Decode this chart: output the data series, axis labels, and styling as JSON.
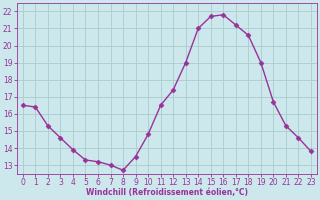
{
  "x": [
    0,
    1,
    2,
    3,
    4,
    5,
    6,
    7,
    8,
    9,
    10,
    11,
    12,
    13,
    14,
    15,
    16,
    17,
    18,
    19,
    20,
    21,
    22,
    23
  ],
  "y": [
    16.5,
    16.4,
    15.3,
    14.6,
    13.9,
    13.3,
    13.2,
    13.0,
    12.7,
    13.5,
    14.8,
    16.5,
    17.4,
    19.0,
    21.0,
    21.7,
    21.8,
    21.2,
    20.6,
    19.0,
    16.7,
    15.3,
    14.6,
    13.8
  ],
  "line_color": "#993399",
  "marker": "D",
  "marker_size": 2.5,
  "line_width": 1.0,
  "bg_color": "#cce8ec",
  "grid_color": "#aacccc",
  "xlabel": "Windchill (Refroidissement éolien,°C)",
  "xlabel_color": "#993399",
  "tick_color": "#993399",
  "ylim": [
    12.5,
    22.5
  ],
  "xlim": [
    -0.5,
    23.5
  ],
  "yticks": [
    13,
    14,
    15,
    16,
    17,
    18,
    19,
    20,
    21,
    22
  ],
  "xticks": [
    0,
    1,
    2,
    3,
    4,
    5,
    6,
    7,
    8,
    9,
    10,
    11,
    12,
    13,
    14,
    15,
    16,
    17,
    18,
    19,
    20,
    21,
    22,
    23
  ],
  "figsize": [
    3.2,
    2.0
  ],
  "dpi": 100
}
